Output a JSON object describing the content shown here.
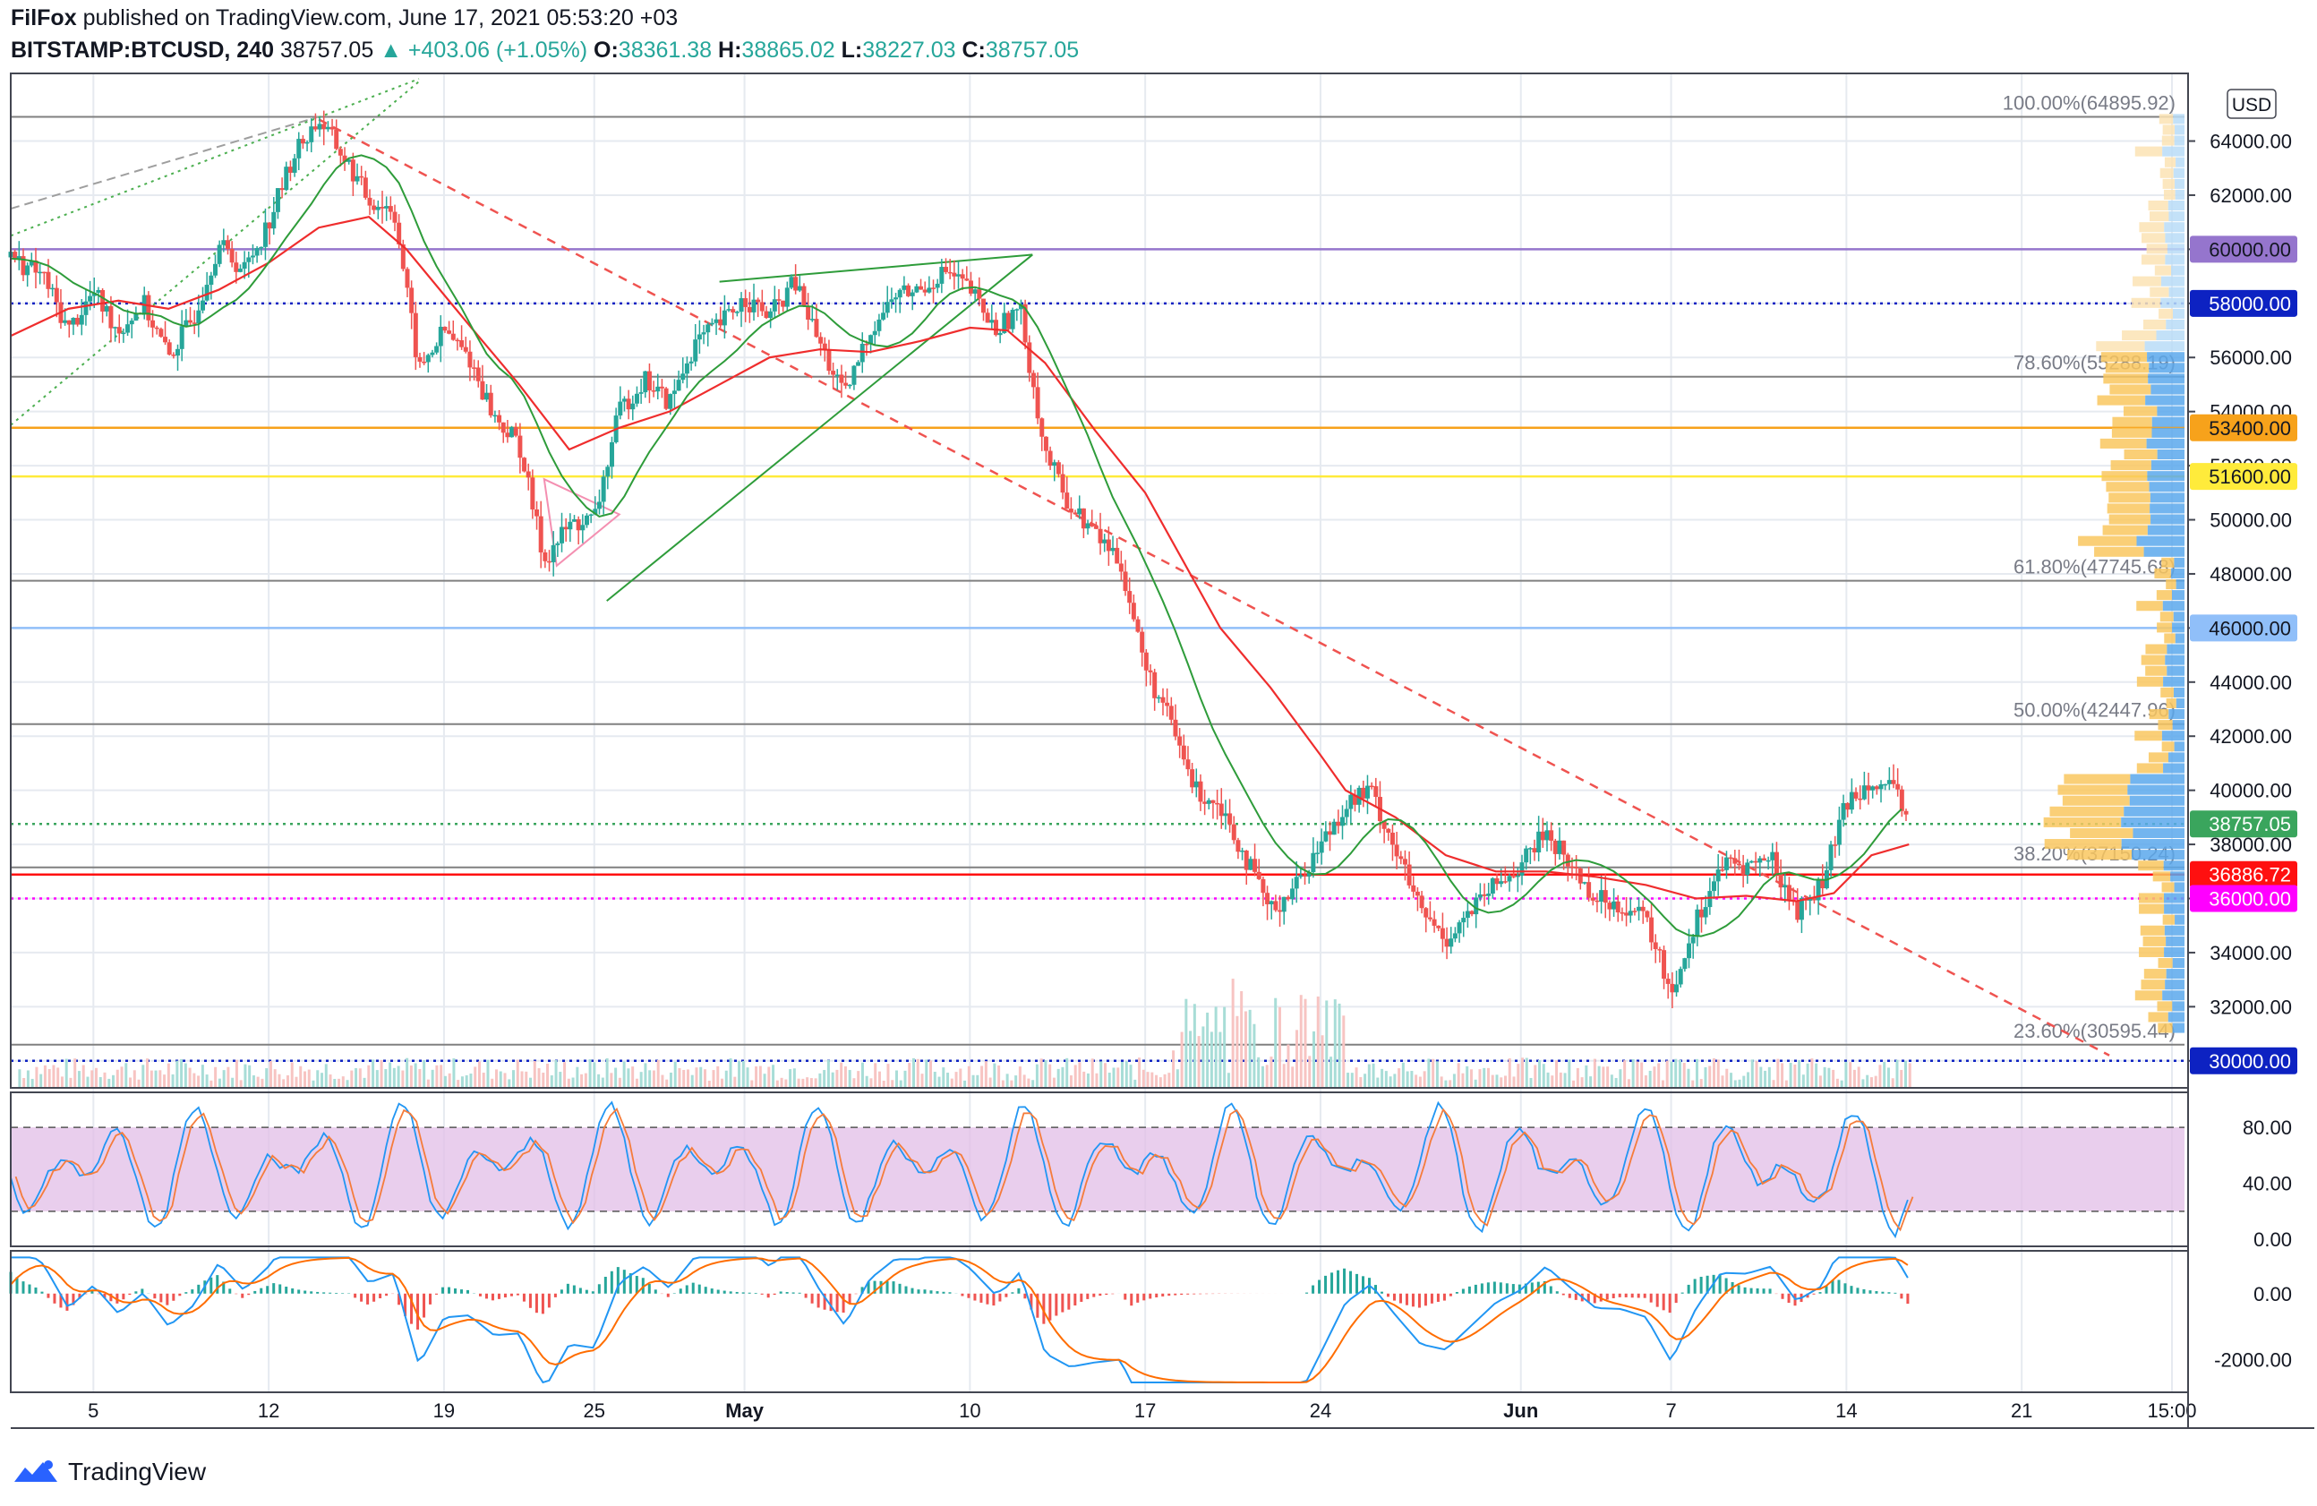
{
  "header": {
    "author": "FilFox",
    "published": "published on TradingView.com, June 17, 2021 05:53:20 +03",
    "symbol": "BITSTAMP:BTCUSD, 240",
    "last": "38757.05",
    "change": "+403.06 (+1.05%)",
    "o_label": "O:",
    "o": "38361.38",
    "h_label": "H:",
    "h": "38865.02",
    "l_label": "L:",
    "l": "38227.03",
    "c_label": "C:",
    "c": "38757.05"
  },
  "footer": {
    "brand": "TradingView",
    "logo_icon": "tradingview-logo-icon"
  },
  "currency": "USD",
  "chart_data": {
    "type": "line",
    "x_ticks": [
      "5",
      "12",
      "19",
      "25",
      "May",
      "10",
      "17",
      "24",
      "Jun",
      "7",
      "14",
      "21",
      "15:00"
    ],
    "x_tick_days": [
      5,
      12,
      19,
      25,
      31,
      40,
      47,
      54,
      62,
      68,
      75,
      82,
      88
    ],
    "x_range_days": [
      1.7,
      88.5
    ],
    "y_range": [
      29000,
      66500
    ],
    "y_ticks": [
      "64000.00",
      "62000.00",
      "60000.00",
      "58000.00",
      "56000.00",
      "54000.00",
      "52000.00",
      "50000.00",
      "48000.00",
      "46000.00",
      "44000.00",
      "42000.00",
      "40000.00",
      "38000.00",
      "36000.00",
      "34000.00",
      "32000.00",
      "30000.00"
    ],
    "y_tick_values": [
      64000,
      62000,
      60000,
      58000,
      56000,
      54000,
      52000,
      50000,
      48000,
      46000,
      44000,
      42000,
      40000,
      38000,
      36000,
      34000,
      32000,
      30000
    ],
    "fib_levels": [
      {
        "label": "100.00%(64895.92)",
        "value": 64895.92
      },
      {
        "label": "78.60%(55288.19)",
        "value": 55288.19
      },
      {
        "label": "61.80%(47745.68)",
        "value": 47745.68
      },
      {
        "label": "50.00%(42447.96)",
        "value": 42447.96
      },
      {
        "label": "38.20%(37150.24)",
        "value": 37150.24
      },
      {
        "label": "23.60%(30595.44)",
        "value": 30595.44
      }
    ],
    "price_lines": [
      {
        "label": "60000.00",
        "value": 60000,
        "color": "#9575cd",
        "style": "solid"
      },
      {
        "label": "58000.00",
        "value": 58000,
        "color": "#0d22c2",
        "style": "dotted"
      },
      {
        "label": "53400.00",
        "value": 53400,
        "color": "#f7a21b",
        "style": "solid"
      },
      {
        "label": "51600.00",
        "value": 51600,
        "color": "#ffeb3b",
        "style": "solid"
      },
      {
        "label": "46000.00",
        "value": 46000,
        "color": "#90bff9",
        "style": "solid"
      },
      {
        "label": "38757.05",
        "value": 38757.05,
        "color": "#3aa55d",
        "style": "dotted"
      },
      {
        "label": "36886.72",
        "value": 36886.72,
        "color": "#ff1010",
        "style": "solid"
      },
      {
        "label": "36000.00",
        "value": 36000,
        "color": "#ff00ff",
        "style": "dotted"
      },
      {
        "label": "30000.00",
        "value": 30000,
        "color": "#0d22c2",
        "style": "dotted"
      }
    ],
    "price_path": [
      [
        1.7,
        59700
      ],
      [
        3,
        59000
      ],
      [
        4,
        57000
      ],
      [
        5,
        58400
      ],
      [
        6,
        57000
      ],
      [
        7,
        58000
      ],
      [
        8,
        56000
      ],
      [
        9,
        57500
      ],
      [
        10,
        60200
      ],
      [
        11,
        59200
      ],
      [
        12,
        61000
      ],
      [
        13,
        63500
      ],
      [
        14,
        64800
      ],
      [
        15,
        63400
      ],
      [
        16,
        61800
      ],
      [
        17,
        61500
      ],
      [
        18,
        55500
      ],
      [
        19,
        57000
      ],
      [
        20,
        56000
      ],
      [
        21,
        53800
      ],
      [
        22,
        52800
      ],
      [
        23,
        48500
      ],
      [
        24,
        49800
      ],
      [
        25,
        50000
      ],
      [
        26,
        54000
      ],
      [
        27,
        55200
      ],
      [
        28,
        54300
      ],
      [
        29,
        56500
      ],
      [
        30,
        57200
      ],
      [
        31,
        58200
      ],
      [
        32,
        57500
      ],
      [
        33,
        58800
      ],
      [
        34,
        56500
      ],
      [
        35,
        54500
      ],
      [
        36,
        57000
      ],
      [
        37,
        58300
      ],
      [
        38,
        58500
      ],
      [
        39,
        59200
      ],
      [
        40,
        58500
      ],
      [
        41,
        57000
      ],
      [
        42,
        57800
      ],
      [
        43,
        52500
      ],
      [
        44,
        50500
      ],
      [
        45,
        49500
      ],
      [
        46,
        48500
      ],
      [
        47,
        44500
      ],
      [
        48,
        42500
      ],
      [
        49,
        40000
      ],
      [
        50,
        39500
      ],
      [
        51,
        37500
      ],
      [
        52,
        35500
      ],
      [
        53,
        36500
      ],
      [
        54,
        38000
      ],
      [
        55,
        39500
      ],
      [
        56,
        40000
      ],
      [
        57,
        37800
      ],
      [
        58,
        35500
      ],
      [
        59,
        34500
      ],
      [
        60,
        35500
      ],
      [
        61,
        36500
      ],
      [
        62,
        37200
      ],
      [
        63,
        38500
      ],
      [
        64,
        37200
      ],
      [
        65,
        36000
      ],
      [
        66,
        35800
      ],
      [
        67,
        35200
      ],
      [
        68,
        32500
      ],
      [
        69,
        35200
      ],
      [
        70,
        37200
      ],
      [
        71,
        37200
      ],
      [
        72,
        37500
      ],
      [
        73,
        35500
      ],
      [
        74,
        36500
      ],
      [
        75,
        39500
      ],
      [
        76,
        40500
      ],
      [
        77,
        39800
      ],
      [
        77.5,
        38757
      ]
    ],
    "ma_path": [
      [
        1.7,
        56800
      ],
      [
        4,
        57800
      ],
      [
        6,
        58100
      ],
      [
        8,
        57800
      ],
      [
        10,
        58500
      ],
      [
        12,
        59500
      ],
      [
        14,
        60800
      ],
      [
        16,
        61200
      ],
      [
        17.5,
        60000
      ],
      [
        20,
        57200
      ],
      [
        22,
        55000
      ],
      [
        24,
        52600
      ],
      [
        26,
        53400
      ],
      [
        28,
        54000
      ],
      [
        30,
        55000
      ],
      [
        32,
        56000
      ],
      [
        34,
        56300
      ],
      [
        36,
        56200
      ],
      [
        38,
        56600
      ],
      [
        40,
        57100
      ],
      [
        41.5,
        57000
      ],
      [
        43,
        55800
      ],
      [
        45,
        53300
      ],
      [
        47,
        51000
      ],
      [
        48.5,
        48500
      ],
      [
        50,
        46000
      ],
      [
        52,
        43800
      ],
      [
        54,
        41300
      ],
      [
        55,
        40000
      ],
      [
        56,
        39500
      ],
      [
        57,
        39000
      ],
      [
        59,
        37600
      ],
      [
        61,
        37000
      ],
      [
        63,
        37000
      ],
      [
        65,
        36800
      ],
      [
        67,
        36500
      ],
      [
        69,
        36000
      ],
      [
        71,
        36100
      ],
      [
        73,
        35900
      ],
      [
        74.5,
        36200
      ],
      [
        76,
        37600
      ],
      [
        77.5,
        38000
      ]
    ],
    "stoch_ticks": [
      "80.00",
      "40.00",
      "0.00"
    ],
    "stoch_tick_values": [
      80,
      40,
      0
    ],
    "stoch_band": [
      20,
      80
    ],
    "stoch_range": [
      -5,
      105
    ],
    "macd_ticks": [
      "0.00",
      "-2000.00"
    ],
    "macd_tick_values": [
      0,
      -2000
    ],
    "macd_range": [
      -3000,
      1300
    ]
  },
  "colors": {
    "up": "#26a69a",
    "down": "#ef5350",
    "grid": "#e6eaf0",
    "fib": "#808080",
    "ma_red": "#ef2d2d",
    "ma_green": "#2e9c3a",
    "stoch_k": "#2196f3",
    "stoch_d": "#f57c3b",
    "stoch_band": "#e1bee7",
    "macd": "#2196f3",
    "signal": "#ff6d00"
  }
}
